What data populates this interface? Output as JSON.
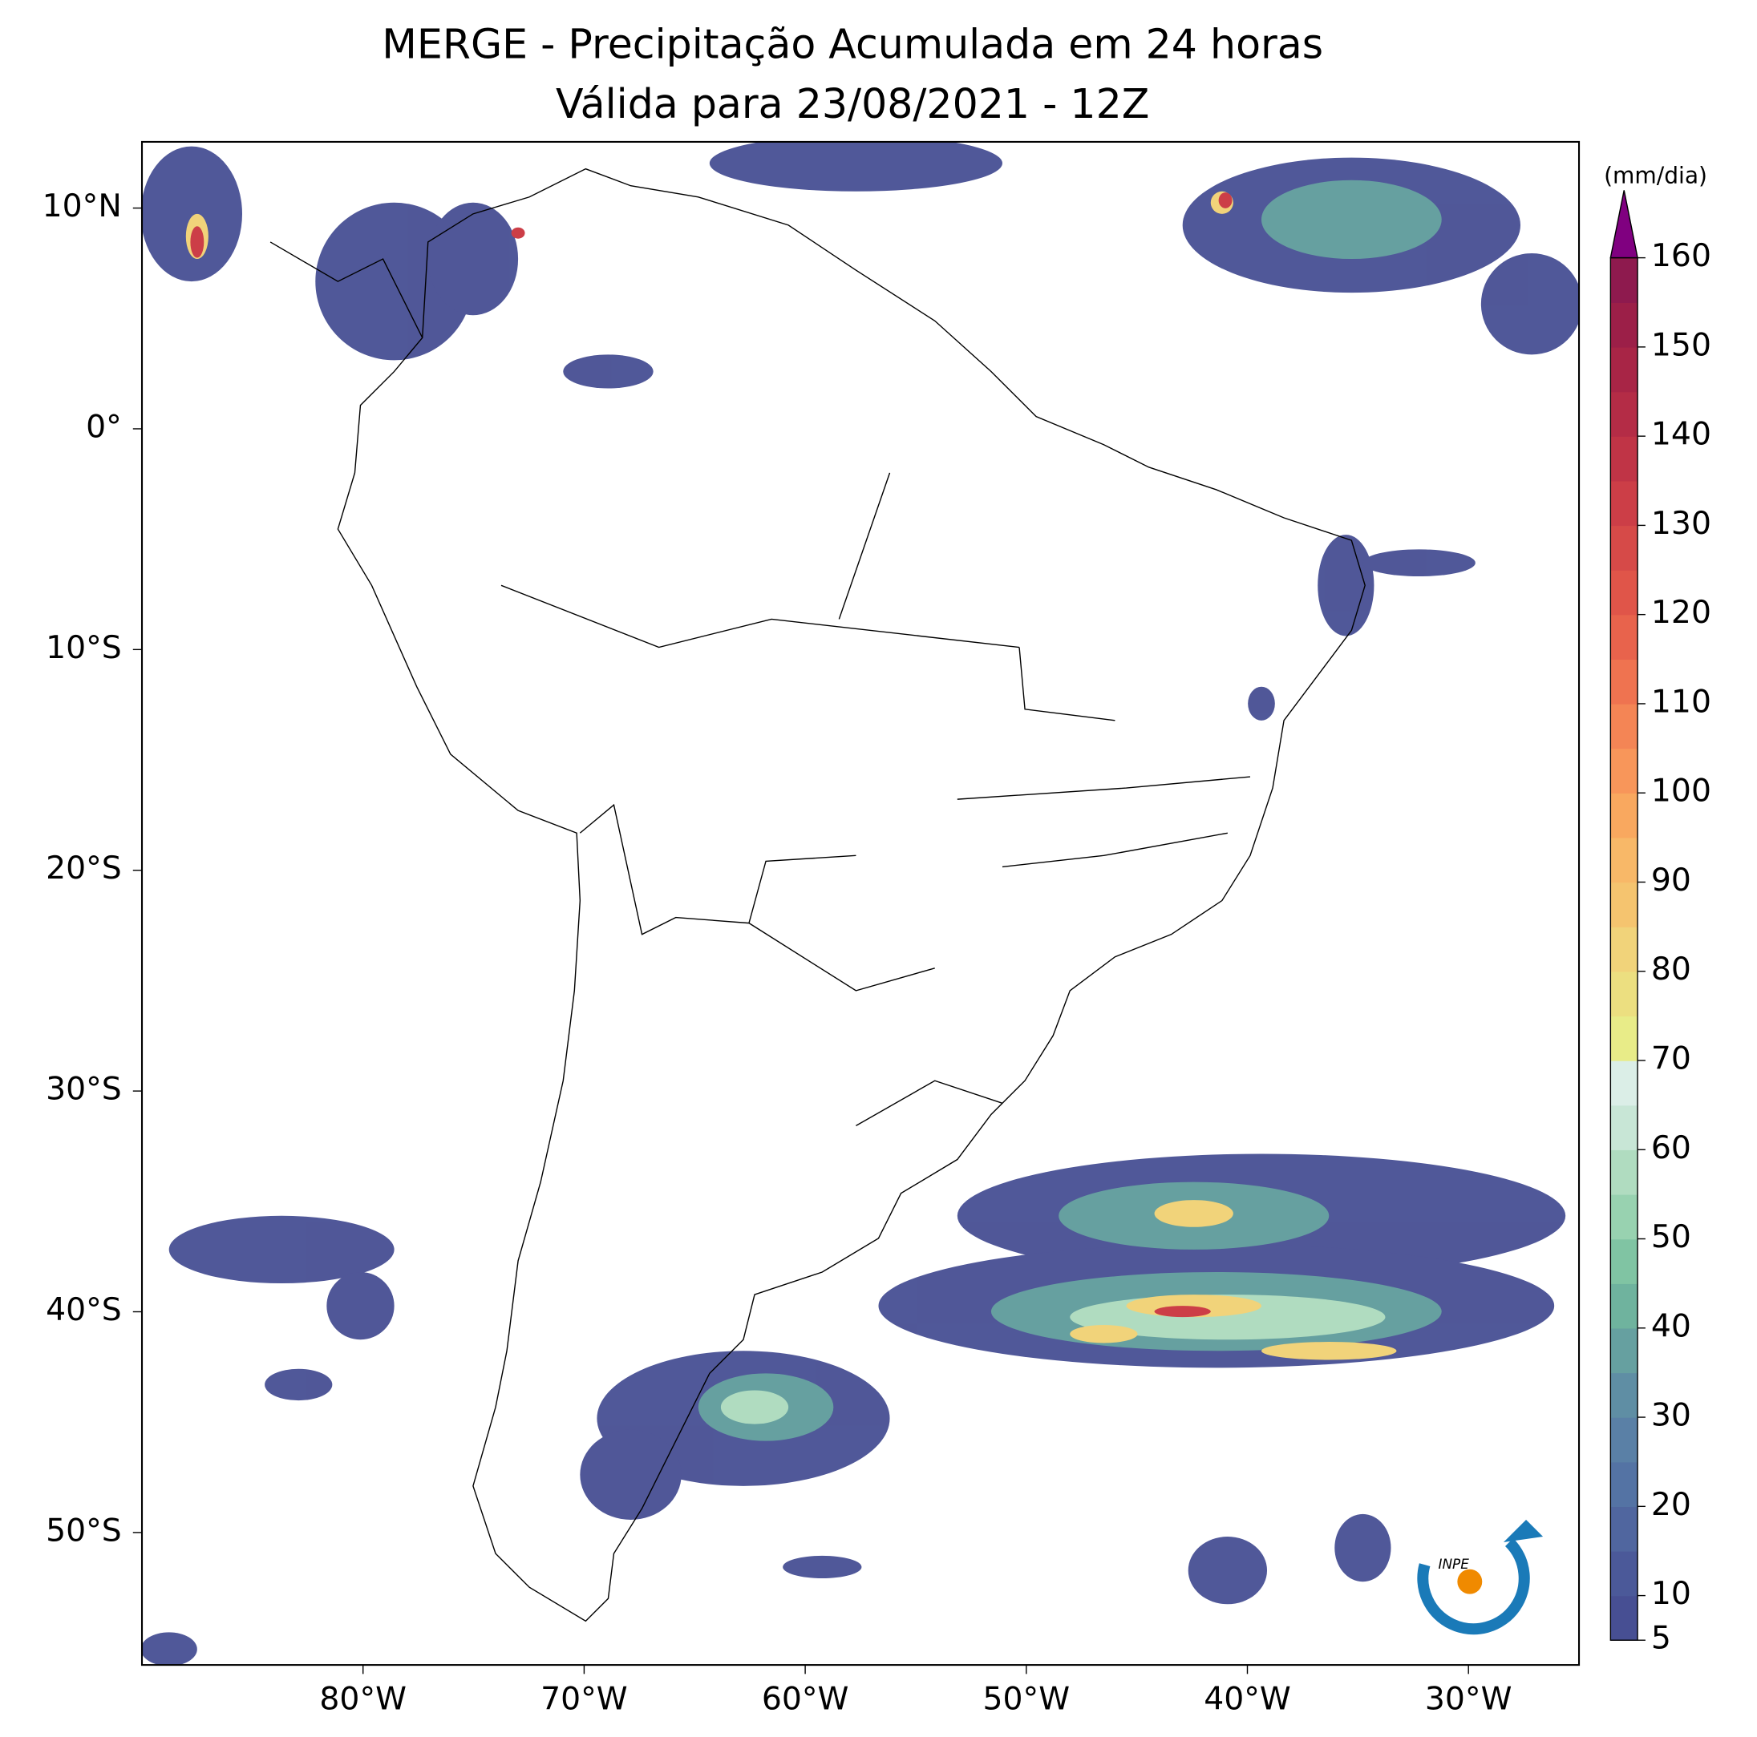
{
  "title": [
    "MERGE - Precipitação Acumulada em 24 horas",
    "Válida para 23/08/2021 - 12Z"
  ],
  "map": {
    "lonlim": [
      -90,
      -25
    ],
    "latlim": [
      -56,
      13
    ],
    "lon_ticks": [
      {
        "value": -80,
        "label": "80°W"
      },
      {
        "value": -70,
        "label": "70°W"
      },
      {
        "value": -60,
        "label": "60°W"
      },
      {
        "value": -50,
        "label": "50°W"
      },
      {
        "value": -40,
        "label": "40°W"
      },
      {
        "value": -30,
        "label": "30°W"
      }
    ],
    "lat_ticks": [
      {
        "value": 10,
        "label": "10°N"
      },
      {
        "value": 0,
        "label": "0°"
      },
      {
        "value": -10,
        "label": "10°S"
      },
      {
        "value": -20,
        "label": "20°S"
      },
      {
        "value": -30,
        "label": "30°S"
      },
      {
        "value": -40,
        "label": "40°S"
      },
      {
        "value": -50,
        "label": "50°S"
      }
    ]
  },
  "colorbar": {
    "label": "(mm/dia)",
    "lim": [
      5,
      160
    ],
    "ticks": [
      5,
      10,
      20,
      30,
      40,
      50,
      60,
      70,
      80,
      90,
      100,
      110,
      120,
      130,
      140,
      150,
      160
    ],
    "colors": [
      "#474f93",
      "#4b5999",
      "#50669f",
      "#5473a4",
      "#5a80a6",
      "#5f8ea4",
      "#66a0a0",
      "#6fb39e",
      "#80c4a3",
      "#98d2b0",
      "#b0dcc0",
      "#c8e6d6",
      "#dbeee7",
      "#e8ec88",
      "#ecdf80",
      "#f1d37a",
      "#f5c46f",
      "#f8b868",
      "#f9a85f",
      "#f8965a",
      "#f48555",
      "#ef7350",
      "#e8634c",
      "#e05549",
      "#d64a48",
      "#cc3e47",
      "#c03446",
      "#b42c46",
      "#a82546",
      "#9c1f48",
      "#8e1a4e"
    ],
    "extend_color": "#800080"
  }
}
